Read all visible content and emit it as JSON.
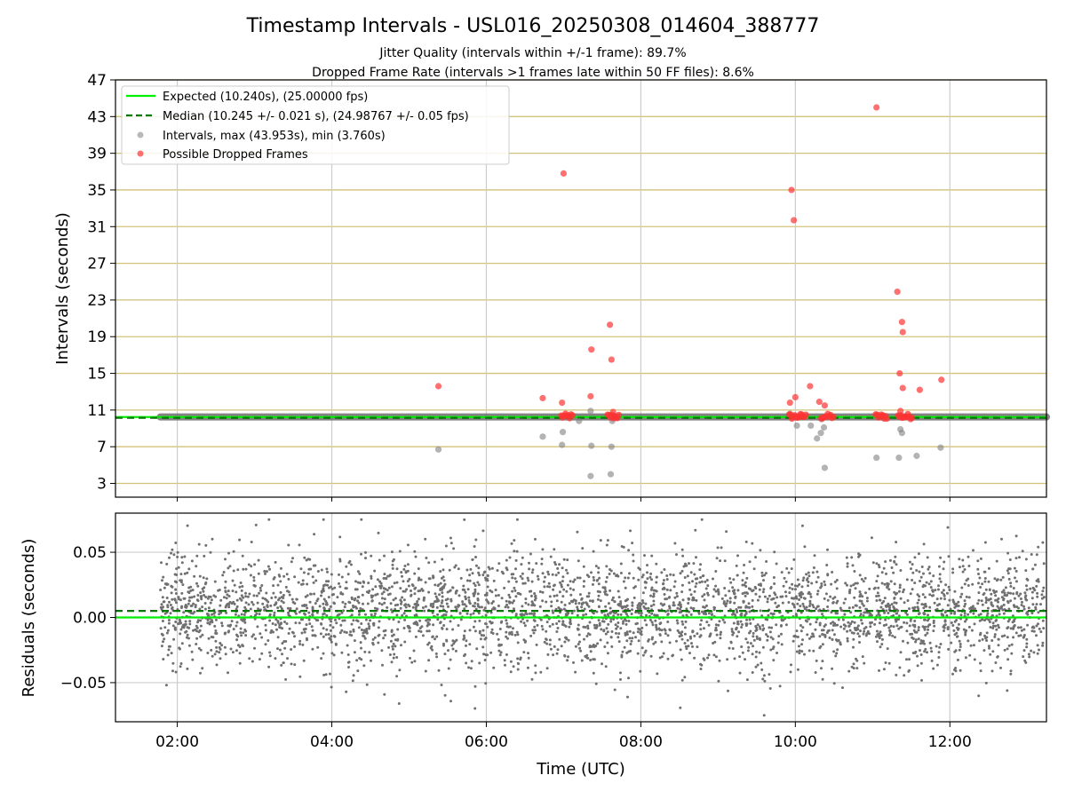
{
  "title": "Timestamp Intervals - USL016_20250308_014604_388777",
  "subtitle_lines": [
    "Jitter Quality (intervals within +/-1 frame): 89.7%",
    "Dropped Frame Rate (intervals >1 frames late within 50 FF files): 8.6%"
  ],
  "colors": {
    "expected": "#00ee00",
    "median": "#007700",
    "intervals": "#808080",
    "dropped": "#ff3333",
    "hgrid": "#d2c27a",
    "vgrid": "#cccccc"
  },
  "chart_data": [
    {
      "type": "scatter",
      "panel": "intervals",
      "xlabel": "",
      "ylabel": "Intervals (seconds)",
      "xlim": [
        1.2,
        13.25
      ],
      "ylim": [
        1.5,
        47
      ],
      "yticks": [
        3,
        7,
        11,
        15,
        19,
        23,
        27,
        31,
        35,
        39,
        43,
        47
      ],
      "xticks": [
        2,
        4,
        6,
        8,
        10,
        12
      ],
      "xtick_labels": [
        "02:00",
        "04:00",
        "06:00",
        "08:00",
        "10:00",
        "12:00"
      ],
      "legend_position": "top-left",
      "legend": [
        "Expected (10.240s), (25.00000 fps)",
        "Median (10.245 +/- 0.021 s), (24.98767 +/- 0.05 fps)",
        "Intervals, max (43.953s), min (3.760s)",
        "Possible Dropped Frames"
      ],
      "expected_interval": 10.24,
      "median_interval": 10.245,
      "baseline_x_range": [
        1.78,
        13.25
      ],
      "interval_outliers": {
        "x": [
          5.38,
          6.73,
          6.98,
          6.99,
          7.2,
          7.35,
          7.36,
          7.35,
          7.61,
          7.62,
          7.63,
          9.93,
          10.02,
          10.2,
          10.28,
          10.33,
          10.34,
          10.37,
          10.38,
          11.05,
          11.34,
          11.36,
          11.38,
          11.57,
          11.88
        ],
        "y": [
          6.7,
          8.1,
          7.2,
          8.6,
          9.8,
          3.8,
          7.1,
          10.9,
          4.0,
          7.0,
          9.8,
          10.6,
          9.3,
          9.3,
          7.9,
          8.5,
          10.0,
          9.1,
          4.7,
          5.8,
          5.8,
          8.9,
          8.5,
          6.0,
          6.9
        ]
      },
      "dropped_frames": {
        "x": [
          5.38,
          6.73,
          6.98,
          7.0,
          7.36,
          7.35,
          7.6,
          7.62,
          7.64,
          9.93,
          9.95,
          9.98,
          10.0,
          10.19,
          10.31,
          10.38,
          11.05,
          11.32,
          11.35,
          11.36,
          11.39,
          11.38,
          11.39,
          11.61,
          11.89
        ],
        "y": [
          13.6,
          12.3,
          11.8,
          36.8,
          17.6,
          12.5,
          20.3,
          16.5,
          10.8,
          11.8,
          35.0,
          31.7,
          12.4,
          13.6,
          11.9,
          11.5,
          44.0,
          23.9,
          15.0,
          10.9,
          19.5,
          20.6,
          13.4,
          13.2,
          14.3
        ]
      },
      "dropped_clusters": [
        [
          6.97,
          7.12
        ],
        [
          7.57,
          7.72
        ],
        [
          9.92,
          10.14
        ],
        [
          10.33,
          10.5
        ],
        [
          11.04,
          11.2
        ],
        [
          11.33,
          11.52
        ]
      ],
      "dropped_cluster_value": 10.3
    },
    {
      "type": "scatter",
      "panel": "residuals",
      "xlabel": "Time (UTC)",
      "ylabel": "Residuals (seconds)",
      "xlim": [
        1.2,
        13.25
      ],
      "ylim": [
        -0.08,
        0.08
      ],
      "yticks": [
        -0.05,
        0.0,
        0.05
      ],
      "ytick_labels": [
        "−0.05",
        "0.00",
        "0.05"
      ],
      "xticks": [
        2,
        4,
        6,
        8,
        10,
        12
      ],
      "xtick_labels": [
        "02:00",
        "04:00",
        "06:00",
        "08:00",
        "10:00",
        "12:00"
      ],
      "expected_line": 0.0,
      "median_line": 0.005,
      "x_range": [
        1.78,
        13.25
      ],
      "point_count": 3600,
      "residual_spread_sd": 0.022,
      "residual_center": 0.005
    }
  ]
}
